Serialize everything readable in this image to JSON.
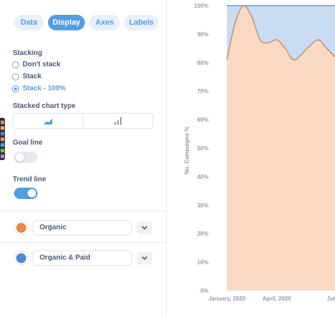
{
  "tabs": [
    {
      "label": "Data",
      "active": false
    },
    {
      "label": "Display",
      "active": true
    },
    {
      "label": "Axes",
      "active": false
    },
    {
      "label": "Labels",
      "active": false
    }
  ],
  "stacking": {
    "label": "Stacking",
    "options": [
      {
        "label": "Don't stack",
        "selected": false
      },
      {
        "label": "Stack",
        "selected": false
      },
      {
        "label": "Stack - 100%",
        "selected": true
      }
    ]
  },
  "stacked_chart_type": {
    "label": "Stacked chart type",
    "options": [
      {
        "icon": "area-chart-icon",
        "selected": true
      },
      {
        "icon": "bar-chart-icon",
        "selected": false
      }
    ]
  },
  "goal_line": {
    "label": "Goal line",
    "on": false
  },
  "trend_line": {
    "label": "Trend line",
    "on": true
  },
  "series": [
    {
      "name": "Organic",
      "color": "#e5894d"
    },
    {
      "name": "Organic & Paid",
      "color": "#4a8bd6"
    }
  ],
  "colors": {
    "accent": "#509ee3",
    "organic_fill": "#f9d9c4",
    "organic_line": "#c08863",
    "paid_fill": "#c9dcf3",
    "paid_line": "#509ee3"
  },
  "chart_data": {
    "type": "area",
    "stacking": "100%",
    "ylabel": "No. Campaigns %",
    "y_ticks": [
      "0%",
      "10%",
      "20%",
      "30%",
      "40%",
      "50%",
      "60%",
      "70%",
      "80%",
      "90%",
      "100%"
    ],
    "ylim": [
      0,
      100
    ],
    "x_ticks": [
      "January, 2020",
      "April, 2020",
      "Jul"
    ],
    "x": [
      0,
      0.5,
      1,
      1.5,
      2,
      2.5,
      3,
      3.5,
      4,
      4.5,
      5,
      5.5,
      6,
      6.5
    ],
    "series": [
      {
        "name": "Organic",
        "values": [
          81,
          94,
          100,
          96,
          88,
          87,
          88,
          85,
          81,
          83,
          86,
          88,
          85,
          82
        ]
      },
      {
        "name": "Organic & Paid",
        "values": [
          19,
          6,
          0,
          4,
          12,
          13,
          12,
          15,
          19,
          17,
          14,
          12,
          15,
          18
        ]
      }
    ]
  }
}
